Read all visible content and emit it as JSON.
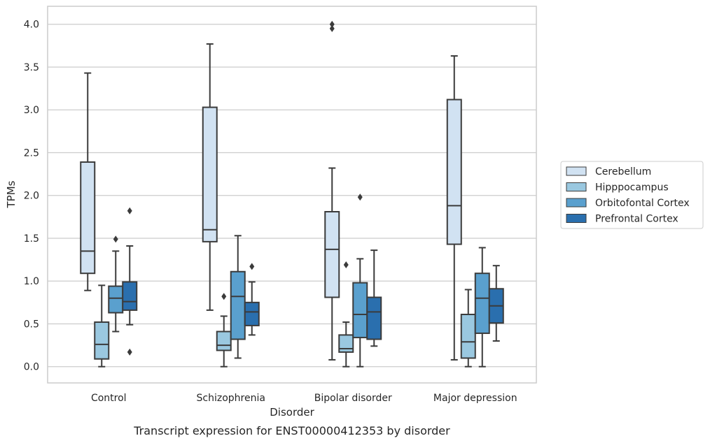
{
  "chart_data": {
    "type": "box",
    "xlabel": "Disorder",
    "ylabel": "TPMs",
    "caption": "Transcript expression for ENST00000412353 by disorder",
    "categories": [
      "Control",
      "Schizophrenia",
      "Bipolar disorder",
      "Major depression"
    ],
    "ylim": [
      -0.19,
      4.21
    ],
    "yticks": [
      "0.0",
      "0.5",
      "1.0",
      "1.5",
      "2.0",
      "2.5",
      "3.0",
      "3.5",
      "4.0"
    ],
    "ytick_values": [
      0,
      0.5,
      1.0,
      1.5,
      2.0,
      2.5,
      3.0,
      3.5,
      4.0
    ],
    "grid": "horizontal",
    "legend_position": "right",
    "series": [
      {
        "name": "Cerebellum",
        "color": "#d1e2f2",
        "boxes": [
          {
            "whislo": 0.89,
            "q1": 1.09,
            "med": 1.35,
            "q3": 2.39,
            "whishi": 3.43,
            "fliers": []
          },
          {
            "whislo": 0.66,
            "q1": 1.46,
            "med": 1.6,
            "q3": 3.03,
            "whishi": 3.77,
            "fliers": []
          },
          {
            "whislo": 0.08,
            "q1": 0.81,
            "med": 1.37,
            "q3": 1.81,
            "whishi": 2.32,
            "fliers": [
              3.95,
              4.0
            ]
          },
          {
            "whislo": 0.08,
            "q1": 1.43,
            "med": 1.88,
            "q3": 3.12,
            "whishi": 3.63,
            "fliers": []
          }
        ]
      },
      {
        "name": "Hipppocampus",
        "color": "#9ac8e0",
        "boxes": [
          {
            "whislo": 0.0,
            "q1": 0.09,
            "med": 0.26,
            "q3": 0.52,
            "whishi": 0.95,
            "fliers": []
          },
          {
            "whislo": 0.0,
            "q1": 0.19,
            "med": 0.25,
            "q3": 0.41,
            "whishi": 0.59,
            "fliers": [
              0.82
            ]
          },
          {
            "whislo": 0.0,
            "q1": 0.17,
            "med": 0.21,
            "q3": 0.37,
            "whishi": 0.52,
            "fliers": [
              1.19
            ]
          },
          {
            "whislo": 0.0,
            "q1": 0.1,
            "med": 0.29,
            "q3": 0.61,
            "whishi": 0.9,
            "fliers": []
          }
        ]
      },
      {
        "name": "Orbitofontal Cortex",
        "color": "#5aa0ce",
        "boxes": [
          {
            "whislo": 0.41,
            "q1": 0.63,
            "med": 0.8,
            "q3": 0.94,
            "whishi": 1.35,
            "fliers": [
              1.49
            ]
          },
          {
            "whislo": 0.1,
            "q1": 0.32,
            "med": 0.82,
            "q3": 1.11,
            "whishi": 1.53,
            "fliers": []
          },
          {
            "whislo": 0.0,
            "q1": 0.34,
            "med": 0.61,
            "q3": 0.98,
            "whishi": 1.26,
            "fliers": [
              1.98
            ]
          },
          {
            "whislo": 0.0,
            "q1": 0.39,
            "med": 0.8,
            "q3": 1.09,
            "whishi": 1.39,
            "fliers": []
          }
        ]
      },
      {
        "name": "Prefrontal Cortex",
        "color": "#2a6fae",
        "boxes": [
          {
            "whislo": 0.49,
            "q1": 0.66,
            "med": 0.76,
            "q3": 0.99,
            "whishi": 1.41,
            "fliers": [
              0.17,
              1.82
            ]
          },
          {
            "whislo": 0.37,
            "q1": 0.48,
            "med": 0.64,
            "q3": 0.75,
            "whishi": 0.99,
            "fliers": [
              1.17
            ]
          },
          {
            "whislo": 0.24,
            "q1": 0.32,
            "med": 0.64,
            "q3": 0.81,
            "whishi": 1.36,
            "fliers": []
          },
          {
            "whislo": 0.3,
            "q1": 0.51,
            "med": 0.71,
            "q3": 0.91,
            "whishi": 1.18,
            "fliers": []
          }
        ]
      }
    ]
  }
}
